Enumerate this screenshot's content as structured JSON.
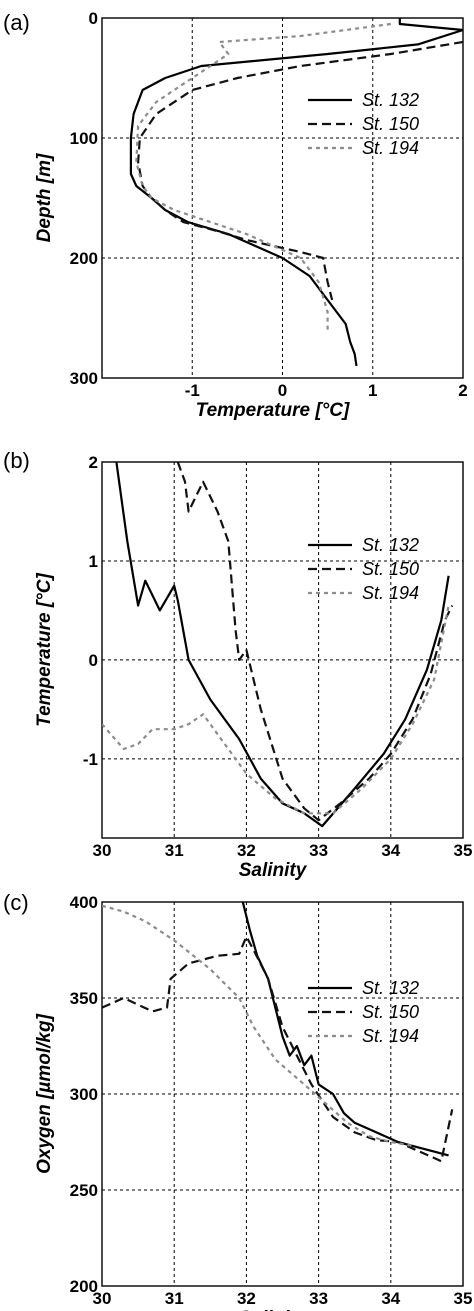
{
  "colors": {
    "st132": "#000000",
    "st150": "#111111",
    "st194": "#8c8c8c",
    "grid": "#000000"
  },
  "chart_data": [
    {
      "panel": "(a)",
      "type": "line",
      "xlabel": "Temperature [°C]",
      "ylabel": "Depth [m]",
      "xlim": [
        -2,
        2
      ],
      "ylim": [
        300,
        0
      ],
      "xticks": [
        -1,
        0,
        1,
        2
      ],
      "yticks": [
        0,
        100,
        200,
        300
      ],
      "xticklabels": [
        "-1",
        "0",
        "1",
        "2"
      ],
      "yticklabels": [
        "0",
        "100",
        "200",
        "300"
      ],
      "grid": true,
      "legend_position": "right",
      "series": [
        {
          "name": "St. 132",
          "style": "solid",
          "x": [
            1.3,
            1.3,
            2.0,
            1.5,
            0.5,
            -0.9,
            -1.3,
            -1.55,
            -1.6,
            -1.65,
            -1.68,
            -1.68,
            -1.62,
            -1.45,
            -1.3,
            -1.05,
            -0.6,
            -0.3,
            0.0,
            0.3,
            0.5,
            0.7,
            0.75,
            0.8,
            0.82
          ],
          "y": [
            0,
            5,
            10,
            22,
            30,
            40,
            50,
            60,
            70,
            80,
            100,
            130,
            140,
            150,
            160,
            170,
            180,
            190,
            200,
            215,
            235,
            255,
            270,
            280,
            290
          ]
        },
        {
          "name": "St. 150",
          "style": "dashed",
          "x": [
            2.0,
            1.2,
            0.2,
            -0.5,
            -1.0,
            -1.4,
            -1.58,
            -1.6,
            -1.55,
            -1.45,
            -1.3,
            -1.1,
            -0.7,
            -0.4,
            -0.1,
            0.2,
            0.45,
            0.5,
            0.55
          ],
          "y": [
            20,
            30,
            40,
            50,
            60,
            80,
            100,
            120,
            140,
            150,
            160,
            170,
            178,
            185,
            190,
            195,
            200,
            220,
            235
          ]
        },
        {
          "name": "St. 194",
          "style": "dotted",
          "x": [
            1.2,
            0.2,
            -0.7,
            -0.6,
            -1.0,
            -1.4,
            -1.6,
            -1.62,
            -1.55,
            -1.45,
            -1.2,
            -0.8,
            -0.4,
            -0.1,
            0.2,
            0.4,
            0.5,
            0.5
          ],
          "y": [
            5,
            15,
            20,
            30,
            50,
            70,
            90,
            120,
            140,
            150,
            160,
            170,
            180,
            190,
            200,
            220,
            245,
            262
          ]
        }
      ]
    },
    {
      "panel": "(b)",
      "type": "line",
      "xlabel": "Salinity",
      "ylabel": "Temperature [°C]",
      "xlim": [
        30,
        35
      ],
      "ylim": [
        -1.8,
        2
      ],
      "xticks": [
        30,
        31,
        32,
        33,
        34,
        35
      ],
      "yticks": [
        -1,
        0,
        1,
        2
      ],
      "xticklabels": [
        "30",
        "31",
        "32",
        "33",
        "34",
        "35"
      ],
      "yticklabels": [
        "-1",
        "0",
        "1",
        "2"
      ],
      "grid": true,
      "legend_position": "right",
      "series": [
        {
          "name": "St. 132",
          "style": "solid",
          "x": [
            30.2,
            30.35,
            30.5,
            30.6,
            30.8,
            31.0,
            31.05,
            31.2,
            31.5,
            31.9,
            32.2,
            32.5,
            32.8,
            33.05,
            33.5,
            33.9,
            34.2,
            34.5,
            34.7,
            34.8
          ],
          "y": [
            2.0,
            1.2,
            0.55,
            0.8,
            0.5,
            0.75,
            0.6,
            0.0,
            -0.4,
            -0.8,
            -1.2,
            -1.45,
            -1.55,
            -1.68,
            -1.3,
            -0.95,
            -0.6,
            -0.1,
            0.4,
            0.85
          ]
        },
        {
          "name": "St. 150",
          "style": "dashed",
          "x": [
            31.05,
            31.15,
            31.2,
            31.4,
            31.6,
            31.75,
            31.85,
            31.9,
            32.0,
            32.2,
            32.5,
            32.8,
            33.0,
            33.3,
            33.7,
            34.0,
            34.3,
            34.55,
            34.75,
            34.85
          ],
          "y": [
            2.0,
            1.8,
            1.5,
            1.8,
            1.5,
            1.2,
            0.3,
            0.0,
            0.1,
            -0.5,
            -1.2,
            -1.5,
            -1.62,
            -1.45,
            -1.2,
            -0.95,
            -0.6,
            -0.15,
            0.4,
            0.55
          ]
        },
        {
          "name": "St. 194",
          "style": "dotted",
          "x": [
            30.0,
            30.3,
            30.5,
            30.7,
            31.0,
            31.2,
            31.4,
            31.7,
            32.0,
            32.4,
            32.8,
            33.2,
            33.6,
            34.0,
            34.3,
            34.6,
            34.8
          ],
          "y": [
            -0.65,
            -0.9,
            -0.85,
            -0.7,
            -0.7,
            -0.65,
            -0.55,
            -0.85,
            -1.15,
            -1.4,
            -1.55,
            -1.55,
            -1.3,
            -1.0,
            -0.65,
            -0.2,
            0.55
          ]
        }
      ]
    },
    {
      "panel": "(c)",
      "type": "line",
      "xlabel": "Salinity",
      "ylabel": "Oxygen [µmol/kg]",
      "xlim": [
        30,
        35
      ],
      "ylim": [
        200,
        400
      ],
      "xticks": [
        30,
        31,
        32,
        33,
        34,
        35
      ],
      "yticks": [
        200,
        250,
        300,
        350,
        400
      ],
      "xticklabels": [
        "30",
        "31",
        "32",
        "33",
        "34",
        "35"
      ],
      "yticklabels": [
        "200",
        "250",
        "300",
        "350",
        "400"
      ],
      "grid": true,
      "legend_position": "right",
      "series": [
        {
          "name": "St. 132",
          "style": "solid",
          "x": [
            31.95,
            32.05,
            32.15,
            32.3,
            32.4,
            32.5,
            32.6,
            32.7,
            32.8,
            32.9,
            33.0,
            33.2,
            33.35,
            33.5,
            33.8,
            34.1,
            34.4,
            34.6,
            34.8
          ],
          "y": [
            400,
            385,
            372,
            360,
            345,
            330,
            320,
            325,
            315,
            320,
            305,
            300,
            290,
            285,
            280,
            275,
            272,
            270,
            268
          ]
        },
        {
          "name": "St. 150",
          "style": "dashed",
          "x": [
            30.0,
            30.3,
            30.7,
            30.9,
            30.95,
            31.2,
            31.6,
            31.9,
            32.0,
            32.1,
            32.3,
            32.5,
            32.7,
            32.9,
            33.2,
            33.5,
            33.8,
            34.1,
            34.4,
            34.7,
            34.85
          ],
          "y": [
            345,
            350,
            343,
            345,
            360,
            368,
            372,
            373,
            382,
            375,
            360,
            335,
            320,
            305,
            288,
            280,
            276,
            275,
            270,
            265,
            292
          ]
        },
        {
          "name": "St. 194",
          "style": "dotted",
          "x": [
            30.0,
            30.3,
            30.6,
            31.0,
            31.5,
            31.9,
            32.1,
            32.4,
            32.8,
            33.1,
            33.4,
            33.7,
            34.0,
            34.3
          ],
          "y": [
            398,
            395,
            390,
            380,
            365,
            350,
            335,
            318,
            305,
            295,
            285,
            278,
            275,
            273
          ]
        }
      ]
    }
  ]
}
